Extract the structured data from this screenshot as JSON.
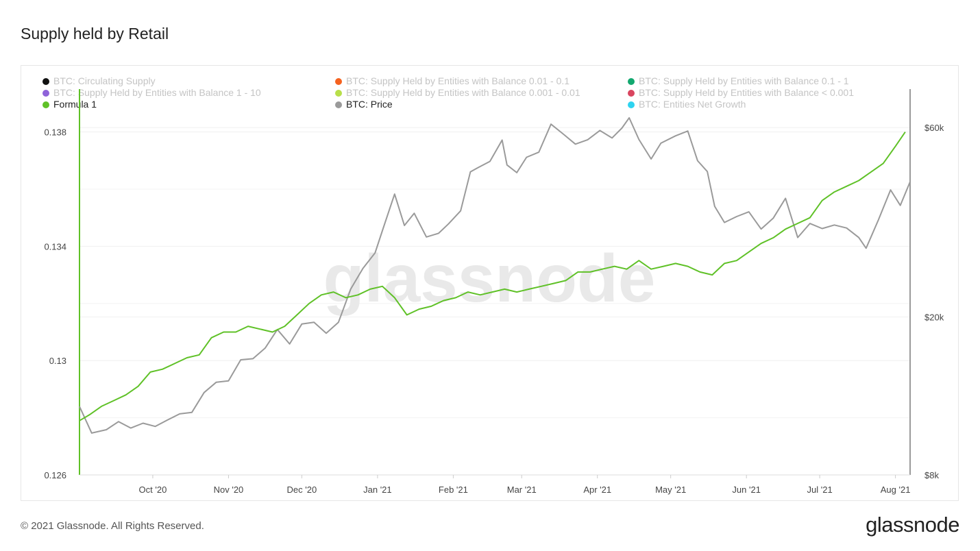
{
  "title": "Supply held by Retail",
  "footer": "© 2021 Glassnode. All Rights Reserved.",
  "brand": "glassnode",
  "watermark": "glassnode",
  "legend": [
    {
      "label": "BTC: Circulating Supply",
      "color": "#111111",
      "active": false
    },
    {
      "label": "BTC: Supply Held by Entities with Balance 0.01 - 0.1",
      "color": "#f5621f",
      "active": false
    },
    {
      "label": "BTC: Supply Held by Entities with Balance 0.1 - 1",
      "color": "#12a86f",
      "active": false
    },
    {
      "label": "BTC: Supply Held by Entities with Balance 1 - 10",
      "color": "#8f63d9",
      "active": false
    },
    {
      "label": "BTC: Supply Held by Entities with Balance 0.001 - 0.01",
      "color": "#b8df4a",
      "active": false
    },
    {
      "label": "BTC: Supply Held by Entities with Balance < 0.001",
      "color": "#d9455f",
      "active": false
    },
    {
      "label": "Formula 1",
      "color": "#5fc127",
      "active": true
    },
    {
      "label": "BTC: Price",
      "color": "#9a9a9a",
      "active": true
    },
    {
      "label": "BTC: Entities Net Growth",
      "color": "#2ed3f0",
      "active": false
    }
  ],
  "chart_data": {
    "type": "line",
    "title": "Supply held by Retail",
    "x_range": [
      "2020-09-01",
      "2021-08-07"
    ],
    "x_ticks": [
      "Oct '20",
      "Nov '20",
      "Dec '20",
      "Jan '21",
      "Feb '21",
      "Mar '21",
      "Apr '21",
      "May '21",
      "Jun '21",
      "Jul '21",
      "Aug '21"
    ],
    "y_left": {
      "ticks": [
        "0.126",
        "0.13",
        "0.134",
        "0.138"
      ],
      "range": [
        0.126,
        0.1395
      ]
    },
    "y_right": {
      "scale": "log",
      "ticks": [
        "$8k",
        "$20k",
        "$60k"
      ],
      "range": [
        8000,
        75000
      ]
    },
    "grid": true,
    "legend_position": "top",
    "series": [
      {
        "name": "Formula 1",
        "color": "#5fc127",
        "axis": "left",
        "x": [
          "2020-09-01",
          "2020-09-05",
          "2020-09-10",
          "2020-09-15",
          "2020-09-20",
          "2020-09-25",
          "2020-09-30",
          "2020-10-05",
          "2020-10-10",
          "2020-10-15",
          "2020-10-20",
          "2020-10-25",
          "2020-10-30",
          "2020-11-04",
          "2020-11-09",
          "2020-11-14",
          "2020-11-19",
          "2020-11-24",
          "2020-11-29",
          "2020-12-04",
          "2020-12-09",
          "2020-12-14",
          "2020-12-19",
          "2020-12-24",
          "2020-12-29",
          "2021-01-03",
          "2021-01-08",
          "2021-01-13",
          "2021-01-18",
          "2021-01-23",
          "2021-01-28",
          "2021-02-02",
          "2021-02-07",
          "2021-02-12",
          "2021-02-17",
          "2021-02-22",
          "2021-02-27",
          "2021-03-04",
          "2021-03-09",
          "2021-03-14",
          "2021-03-19",
          "2021-03-24",
          "2021-03-29",
          "2021-04-03",
          "2021-04-08",
          "2021-04-13",
          "2021-04-18",
          "2021-04-23",
          "2021-04-28",
          "2021-05-03",
          "2021-05-08",
          "2021-05-13",
          "2021-05-18",
          "2021-05-23",
          "2021-05-28",
          "2021-06-02",
          "2021-06-07",
          "2021-06-12",
          "2021-06-17",
          "2021-06-22",
          "2021-06-27",
          "2021-07-02",
          "2021-07-07",
          "2021-07-12",
          "2021-07-17",
          "2021-07-22",
          "2021-07-27",
          "2021-08-01",
          "2021-08-05"
        ],
        "values": [
          0.1279,
          0.1281,
          0.1284,
          0.1286,
          0.1288,
          0.1291,
          0.1296,
          0.1297,
          0.1299,
          0.1301,
          0.1302,
          0.1308,
          0.131,
          0.131,
          0.1312,
          0.1311,
          0.131,
          0.1312,
          0.1316,
          0.132,
          0.1323,
          0.1324,
          0.1322,
          0.1323,
          0.1325,
          0.1326,
          0.1322,
          0.1316,
          0.1318,
          0.1319,
          0.1321,
          0.1322,
          0.1324,
          0.1323,
          0.1324,
          0.1325,
          0.1324,
          0.1325,
          0.1326,
          0.1327,
          0.1328,
          0.1331,
          0.1331,
          0.1332,
          0.1333,
          0.1332,
          0.1335,
          0.1332,
          0.1333,
          0.1334,
          0.1333,
          0.1331,
          0.133,
          0.1334,
          0.1335,
          0.1338,
          0.1341,
          0.1343,
          0.1346,
          0.1348,
          0.135,
          0.1356,
          0.1359,
          0.1361,
          0.1363,
          0.1366,
          0.1369,
          0.1375,
          0.138
        ]
      },
      {
        "name": "BTC: Price",
        "color": "#9a9a9a",
        "axis": "right",
        "x": [
          "2020-09-01",
          "2020-09-06",
          "2020-09-12",
          "2020-09-17",
          "2020-09-22",
          "2020-09-27",
          "2020-10-02",
          "2020-10-07",
          "2020-10-12",
          "2020-10-17",
          "2020-10-22",
          "2020-10-27",
          "2020-11-01",
          "2020-11-06",
          "2020-11-11",
          "2020-11-16",
          "2020-11-21",
          "2020-11-26",
          "2020-12-01",
          "2020-12-06",
          "2020-12-11",
          "2020-12-16",
          "2020-12-21",
          "2020-12-26",
          "2020-12-31",
          "2021-01-03",
          "2021-01-08",
          "2021-01-12",
          "2021-01-16",
          "2021-01-21",
          "2021-01-26",
          "2021-01-30",
          "2021-02-04",
          "2021-02-08",
          "2021-02-11",
          "2021-02-16",
          "2021-02-21",
          "2021-02-23",
          "2021-02-27",
          "2021-03-03",
          "2021-03-08",
          "2021-03-13",
          "2021-03-18",
          "2021-03-23",
          "2021-03-28",
          "2021-04-02",
          "2021-04-07",
          "2021-04-11",
          "2021-04-14",
          "2021-04-18",
          "2021-04-23",
          "2021-04-27",
          "2021-05-03",
          "2021-05-08",
          "2021-05-12",
          "2021-05-16",
          "2021-05-19",
          "2021-05-23",
          "2021-05-28",
          "2021-06-02",
          "2021-06-07",
          "2021-06-12",
          "2021-06-17",
          "2021-06-22",
          "2021-06-27",
          "2021-07-02",
          "2021-07-07",
          "2021-07-12",
          "2021-07-17",
          "2021-07-20",
          "2021-07-25",
          "2021-07-30",
          "2021-08-03",
          "2021-08-07"
        ],
        "values": [
          11900,
          10200,
          10400,
          10900,
          10500,
          10800,
          10600,
          11000,
          11400,
          11500,
          12900,
          13700,
          13800,
          15600,
          15700,
          16700,
          18600,
          17100,
          19200,
          19400,
          18200,
          19400,
          23500,
          26500,
          29000,
          33000,
          40800,
          34000,
          36500,
          31800,
          32500,
          34300,
          37000,
          46400,
          47500,
          49300,
          55800,
          48300,
          46200,
          50500,
          52000,
          61200,
          57800,
          54500,
          55900,
          59000,
          56500,
          59800,
          63500,
          56000,
          50000,
          54800,
          57200,
          58800,
          49500,
          46500,
          38000,
          34600,
          35800,
          36800,
          33300,
          35500,
          39800,
          31700,
          34400,
          33400,
          34100,
          33500,
          31700,
          29800,
          35100,
          41800,
          38200,
          43800
        ]
      }
    ]
  }
}
